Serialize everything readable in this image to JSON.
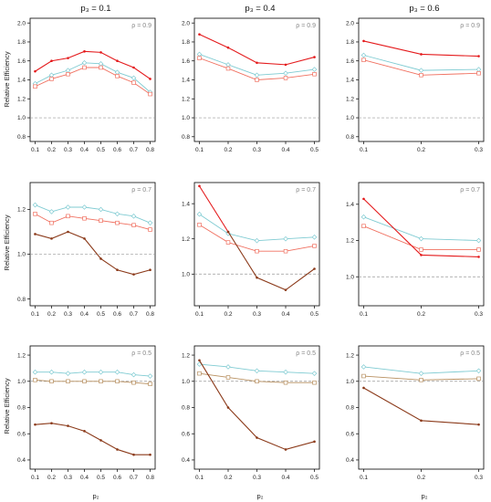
{
  "colors": {
    "red": "#e41a1c",
    "cyan": "#7fcbd2",
    "salmon": "#f07060",
    "brown": "#8b3a1a",
    "tan": "#b89060",
    "ref": "#999999"
  },
  "figure": {
    "column_titles": [
      "p₃ = 0.1",
      "p₃ = 0.4",
      "p₃ = 0.6"
    ],
    "ylabel": "Relative Efficiency",
    "xlabel": "p₂"
  },
  "chart_data": [
    {
      "type": "line",
      "title": "",
      "rho_label": "ρ = 0.9",
      "row": 0,
      "col": 0,
      "x": [
        0.1,
        0.2,
        0.3,
        0.4,
        0.5,
        0.6,
        0.7,
        0.8
      ],
      "xticks": [
        "0.1",
        "0.2",
        "0.3",
        "0.4",
        "0.5",
        "0.6",
        "0.7",
        "0.8"
      ],
      "ylim": [
        0.75,
        2.05
      ],
      "yticks": [
        "0.8",
        "1.0",
        "1.2",
        "1.4",
        "1.6",
        "1.8",
        "2.0"
      ],
      "ytick_values": [
        0.8,
        1.0,
        1.2,
        1.4,
        1.6,
        1.8,
        2.0
      ],
      "ref": 1.0,
      "series": [
        {
          "color": "red",
          "marker": "dot",
          "values": [
            1.49,
            1.6,
            1.63,
            1.7,
            1.69,
            1.6,
            1.53,
            1.41
          ]
        },
        {
          "color": "cyan",
          "marker": "diamond",
          "values": [
            1.36,
            1.45,
            1.5,
            1.58,
            1.57,
            1.48,
            1.42,
            1.27
          ]
        },
        {
          "color": "salmon",
          "marker": "square",
          "values": [
            1.33,
            1.41,
            1.46,
            1.53,
            1.53,
            1.44,
            1.37,
            1.25
          ]
        }
      ]
    },
    {
      "type": "line",
      "title": "",
      "rho_label": "ρ = 0.9",
      "row": 0,
      "col": 1,
      "x": [
        0.1,
        0.2,
        0.3,
        0.4,
        0.5
      ],
      "xticks": [
        "0.1",
        "0.2",
        "0.3",
        "0.4",
        "0.5"
      ],
      "ylim": [
        0.75,
        2.05
      ],
      "yticks": [
        "0.8",
        "1.0",
        "1.2",
        "1.4",
        "1.6",
        "1.8",
        "2.0"
      ],
      "ytick_values": [
        0.8,
        1.0,
        1.2,
        1.4,
        1.6,
        1.8,
        2.0
      ],
      "ref": 1.0,
      "series": [
        {
          "color": "red",
          "marker": "dot",
          "values": [
            1.88,
            1.74,
            1.58,
            1.56,
            1.64
          ]
        },
        {
          "color": "cyan",
          "marker": "diamond",
          "values": [
            1.67,
            1.56,
            1.45,
            1.47,
            1.51
          ]
        },
        {
          "color": "salmon",
          "marker": "square",
          "values": [
            1.63,
            1.52,
            1.4,
            1.42,
            1.46
          ]
        }
      ]
    },
    {
      "type": "line",
      "title": "",
      "rho_label": "ρ = 0.9",
      "row": 0,
      "col": 2,
      "x": [
        0.1,
        0.2,
        0.3
      ],
      "xticks": [
        "0.1",
        "0.2",
        "0.3"
      ],
      "ylim": [
        0.75,
        2.05
      ],
      "yticks": [
        "0.8",
        "1.0",
        "1.2",
        "1.4",
        "1.6",
        "1.8",
        "2.0"
      ],
      "ytick_values": [
        0.8,
        1.0,
        1.2,
        1.4,
        1.6,
        1.8,
        2.0
      ],
      "ref": 1.0,
      "series": [
        {
          "color": "red",
          "marker": "dot",
          "values": [
            1.81,
            1.67,
            1.65
          ]
        },
        {
          "color": "cyan",
          "marker": "diamond",
          "values": [
            1.66,
            1.5,
            1.51
          ]
        },
        {
          "color": "salmon",
          "marker": "square",
          "values": [
            1.61,
            1.45,
            1.47
          ]
        }
      ]
    },
    {
      "type": "line",
      "title": "",
      "rho_label": "ρ = 0.7",
      "row": 1,
      "col": 0,
      "x": [
        0.1,
        0.2,
        0.3,
        0.4,
        0.5,
        0.6,
        0.7,
        0.8
      ],
      "xticks": [
        "0.1",
        "0.2",
        "0.3",
        "0.4",
        "0.5",
        "0.6",
        "0.7",
        "0.8"
      ],
      "ylim": [
        0.77,
        1.32
      ],
      "yticks": [
        "0.8",
        "1.0",
        "1.2"
      ],
      "ytick_values": [
        0.8,
        1.0,
        1.2
      ],
      "ref": 1.0,
      "series": [
        {
          "color": "cyan",
          "marker": "diamond",
          "values": [
            1.22,
            1.19,
            1.21,
            1.21,
            1.2,
            1.18,
            1.17,
            1.14
          ]
        },
        {
          "color": "salmon",
          "marker": "square",
          "values": [
            1.18,
            1.14,
            1.17,
            1.16,
            1.15,
            1.14,
            1.13,
            1.11
          ]
        },
        {
          "color": "brown",
          "marker": "dot",
          "values": [
            1.09,
            1.07,
            1.1,
            1.07,
            0.98,
            0.93,
            0.91,
            0.93
          ]
        }
      ]
    },
    {
      "type": "line",
      "title": "",
      "rho_label": "ρ = 0.7",
      "row": 1,
      "col": 1,
      "x": [
        0.1,
        0.2,
        0.3,
        0.4,
        0.5
      ],
      "xticks": [
        "0.1",
        "0.2",
        "0.3",
        "0.4",
        "0.5"
      ],
      "ylim": [
        0.82,
        1.52
      ],
      "yticks": [
        "1.0",
        "1.2",
        "1.4"
      ],
      "ytick_values": [
        1.0,
        1.2,
        1.4
      ],
      "ref": 1.0,
      "series": [
        {
          "color": "cyan",
          "marker": "diamond",
          "values": [
            1.34,
            1.23,
            1.19,
            1.2,
            1.21
          ]
        },
        {
          "color": "salmon",
          "marker": "square",
          "values": [
            1.28,
            1.18,
            1.13,
            1.13,
            1.16
          ]
        },
        {
          "color": "red",
          "marker": "dot",
          "values": [
            1.5,
            1.24,
            null,
            null,
            null
          ]
        },
        {
          "color": "brown",
          "marker": "dot",
          "values": [
            null,
            1.24,
            0.98,
            0.91,
            1.03
          ]
        }
      ]
    },
    {
      "type": "line",
      "title": "",
      "rho_label": "ρ = 0.7",
      "row": 1,
      "col": 2,
      "x": [
        0.1,
        0.2,
        0.3
      ],
      "xticks": [
        "0.1",
        "0.2",
        "0.3"
      ],
      "ylim": [
        0.84,
        1.52
      ],
      "yticks": [
        "1.0",
        "1.2",
        "1.4"
      ],
      "ytick_values": [
        1.0,
        1.2,
        1.4
      ],
      "ref": 1.0,
      "series": [
        {
          "color": "cyan",
          "marker": "diamond",
          "values": [
            1.33,
            1.21,
            1.2
          ]
        },
        {
          "color": "salmon",
          "marker": "square",
          "values": [
            1.28,
            1.15,
            1.15
          ]
        },
        {
          "color": "red",
          "marker": "dot",
          "values": [
            1.43,
            1.12,
            1.11
          ]
        }
      ]
    },
    {
      "type": "line",
      "title": "",
      "rho_label": "ρ = 0.5",
      "row": 2,
      "col": 0,
      "x": [
        0.1,
        0.2,
        0.3,
        0.4,
        0.5,
        0.6,
        0.7,
        0.8
      ],
      "xticks": [
        "0.1",
        "0.2",
        "0.3",
        "0.4",
        "0.5",
        "0.6",
        "0.7",
        "0.8"
      ],
      "ylim": [
        0.33,
        1.27
      ],
      "yticks": [
        "0.4",
        "0.6",
        "0.8",
        "1.0",
        "1.2"
      ],
      "ytick_values": [
        0.4,
        0.6,
        0.8,
        1.0,
        1.2
      ],
      "ref": 1.0,
      "series": [
        {
          "color": "cyan",
          "marker": "diamond",
          "values": [
            1.07,
            1.07,
            1.06,
            1.07,
            1.07,
            1.07,
            1.05,
            1.04
          ]
        },
        {
          "color": "tan",
          "marker": "square",
          "values": [
            1.01,
            1.0,
            1.0,
            1.0,
            1.0,
            1.0,
            0.99,
            0.98
          ]
        },
        {
          "color": "brown",
          "marker": "dot",
          "values": [
            0.67,
            0.68,
            0.66,
            0.62,
            0.55,
            0.48,
            0.44,
            0.44
          ]
        }
      ]
    },
    {
      "type": "line",
      "title": "",
      "rho_label": "ρ = 0.5",
      "row": 2,
      "col": 1,
      "x": [
        0.1,
        0.2,
        0.3,
        0.4,
        0.5
      ],
      "xticks": [
        "0.1",
        "0.2",
        "0.3",
        "0.4",
        "0.5"
      ],
      "ylim": [
        0.33,
        1.27
      ],
      "yticks": [
        "0.4",
        "0.6",
        "0.8",
        "1.0",
        "1.2"
      ],
      "ytick_values": [
        0.4,
        0.6,
        0.8,
        1.0,
        1.2
      ],
      "ref": 1.0,
      "series": [
        {
          "color": "cyan",
          "marker": "diamond",
          "values": [
            1.13,
            1.11,
            1.08,
            1.07,
            1.06
          ]
        },
        {
          "color": "tan",
          "marker": "square",
          "values": [
            1.06,
            1.03,
            1.0,
            0.99,
            0.99
          ]
        },
        {
          "color": "brown",
          "marker": "dot",
          "values": [
            1.16,
            0.8,
            0.57,
            0.48,
            0.54
          ]
        }
      ]
    },
    {
      "type": "line",
      "title": "",
      "rho_label": "ρ = 0.5",
      "row": 2,
      "col": 2,
      "x": [
        0.1,
        0.2,
        0.3
      ],
      "xticks": [
        "0.1",
        "0.2",
        "0.3"
      ],
      "ylim": [
        0.33,
        1.27
      ],
      "yticks": [
        "0.4",
        "0.6",
        "0.8",
        "1.0",
        "1.2"
      ],
      "ytick_values": [
        0.4,
        0.6,
        0.8,
        1.0,
        1.2
      ],
      "ref": 1.0,
      "series": [
        {
          "color": "cyan",
          "marker": "diamond",
          "values": [
            1.11,
            1.06,
            1.08
          ]
        },
        {
          "color": "tan",
          "marker": "square",
          "values": [
            1.04,
            1.01,
            1.02
          ]
        },
        {
          "color": "brown",
          "marker": "dot",
          "values": [
            0.95,
            0.7,
            0.67
          ]
        }
      ]
    }
  ]
}
